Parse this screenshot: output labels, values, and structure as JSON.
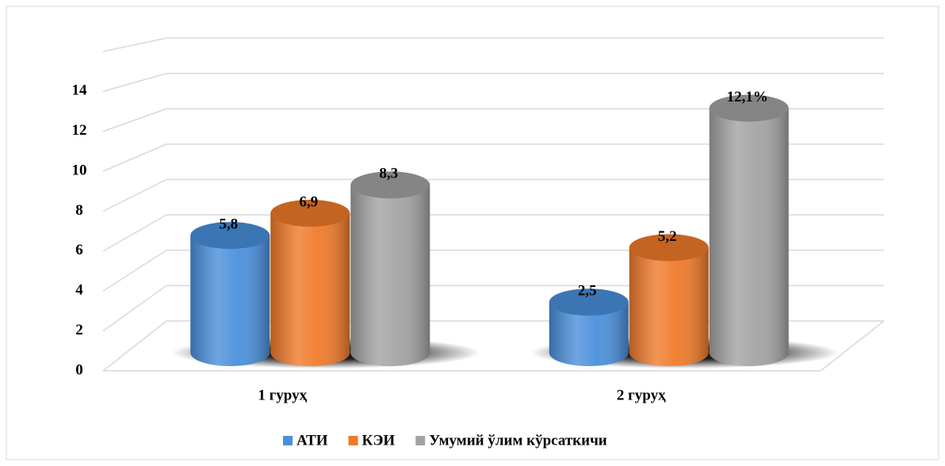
{
  "chart_data": {
    "type": "bar3d",
    "categories": [
      "1 гуруҳ",
      "2 гуруҳ"
    ],
    "series": [
      {
        "name": "АТИ",
        "color": "#4a8fdc",
        "values": [
          5.8,
          2.5
        ],
        "value_labels": [
          "5,8",
          "2,5"
        ]
      },
      {
        "name": "КЭИ",
        "color": "#f07a2a",
        "values": [
          6.9,
          5.2
        ],
        "value_labels": [
          "6,9",
          "5,2"
        ]
      },
      {
        "name": "Умумий ўлим кўрсаткичи",
        "color": "#a3a3a3",
        "values": [
          8.3,
          12.1
        ],
        "value_labels": [
          "8,3",
          "12,1%"
        ]
      }
    ],
    "ylim": [
      0,
      16
    ],
    "yticks": [
      0,
      2,
      4,
      6,
      8,
      10,
      12,
      14
    ],
    "grid": true,
    "legend": "bottom"
  }
}
